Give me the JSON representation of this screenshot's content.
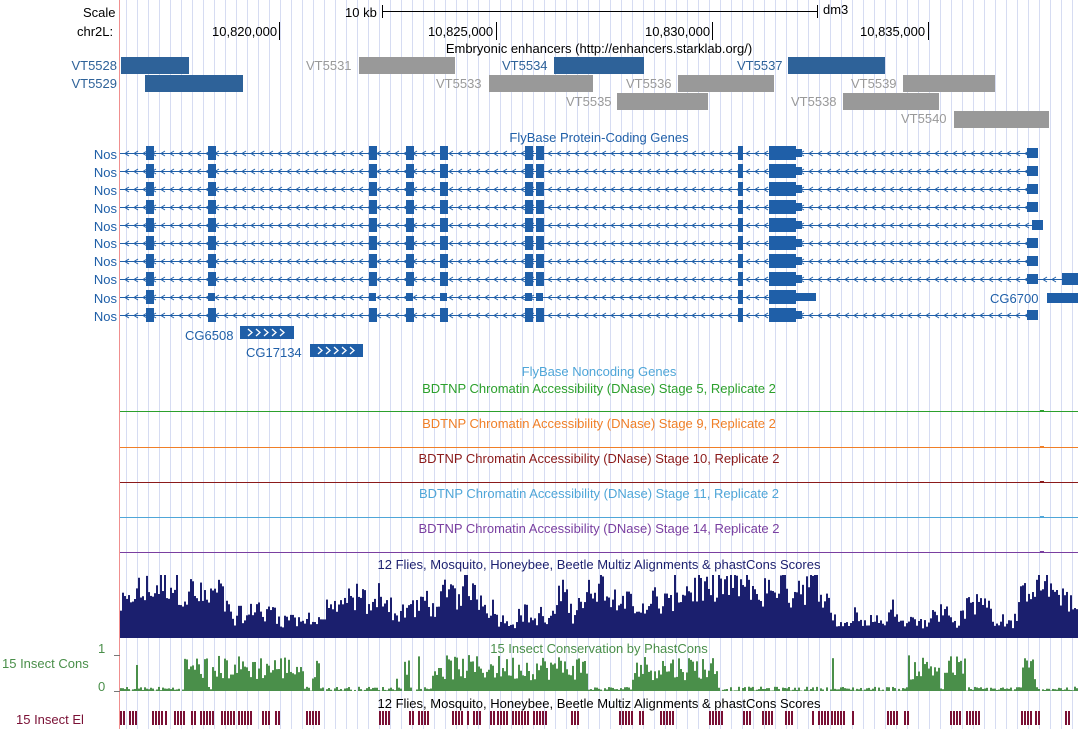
{
  "ruler": {
    "scale_label": "Scale",
    "chrom_label": "chr2L:",
    "scale_bar_label": "10 kb",
    "assembly": "dm3",
    "ticks": [
      "10,820,000",
      "10,825,000",
      "10,830,000",
      "10,835,000"
    ]
  },
  "enhancers": {
    "title": "Embryonic enhancers (http://enhancers.starklab.org/)",
    "items": [
      {
        "name": "VT5528",
        "active": true
      },
      {
        "name": "VT5529",
        "active": true
      },
      {
        "name": "VT5531",
        "active": false
      },
      {
        "name": "VT5533",
        "active": false
      },
      {
        "name": "VT5534",
        "active": true
      },
      {
        "name": "VT5535",
        "active": false
      },
      {
        "name": "VT5536",
        "active": false
      },
      {
        "name": "VT5537",
        "active": true
      },
      {
        "name": "VT5538",
        "active": false
      },
      {
        "name": "VT5539",
        "active": false
      },
      {
        "name": "VT5540",
        "active": false
      }
    ]
  },
  "genes": {
    "title": "FlyBase Protein-Coding Genes",
    "transcript_label": "Nos",
    "transcript_count": 10,
    "other": [
      "CG6508",
      "CG17134",
      "CG6700"
    ]
  },
  "noncoding": {
    "title": "FlyBase Noncoding Genes"
  },
  "dnase": [
    {
      "title": "BDTNP Chromatin Accessibility (DNase) Stage 5, Replicate 2",
      "color": "#2ca02c"
    },
    {
      "title": "BDTNP Chromatin Accessibility (DNase) Stage 9, Replicate 2",
      "color": "#f07f27"
    },
    {
      "title": "BDTNP Chromatin Accessibility (DNase) Stage 10, Replicate 2",
      "color": "#8b1a1a"
    },
    {
      "title": "BDTNP Chromatin Accessibility (DNase) Stage 11, Replicate 2",
      "color": "#4fa6d8"
    },
    {
      "title": "BDTNP Chromatin Accessibility (DNase) Stage 14, Replicate 2",
      "color": "#7a3fa0"
    }
  ],
  "multiz": {
    "title": "12 Flies, Mosquito, Honeybee, Beetle Multiz Alignments & phastCons Scores"
  },
  "phastcons": {
    "title": "15 Insect Conservation by PhastCons",
    "side_label": "15 Insect Cons",
    "max_label": "1",
    "min_label": "0"
  },
  "elements": {
    "title": "12 Flies, Mosquito, Honeybee, Beetle Multiz Alignments & phastCons Scores",
    "side_label": "15 Insect El"
  },
  "colors": {
    "gene_blue": "#1f5fa8",
    "enh_blue": "#2e6299",
    "enh_gray": "#999999",
    "multiz_navy": "#1b1f6e",
    "cons_green": "#4a8f4a",
    "el_maroon": "#7a1035",
    "grid_blue": "#d6dcf2",
    "red_margin": "#f08f8f"
  }
}
